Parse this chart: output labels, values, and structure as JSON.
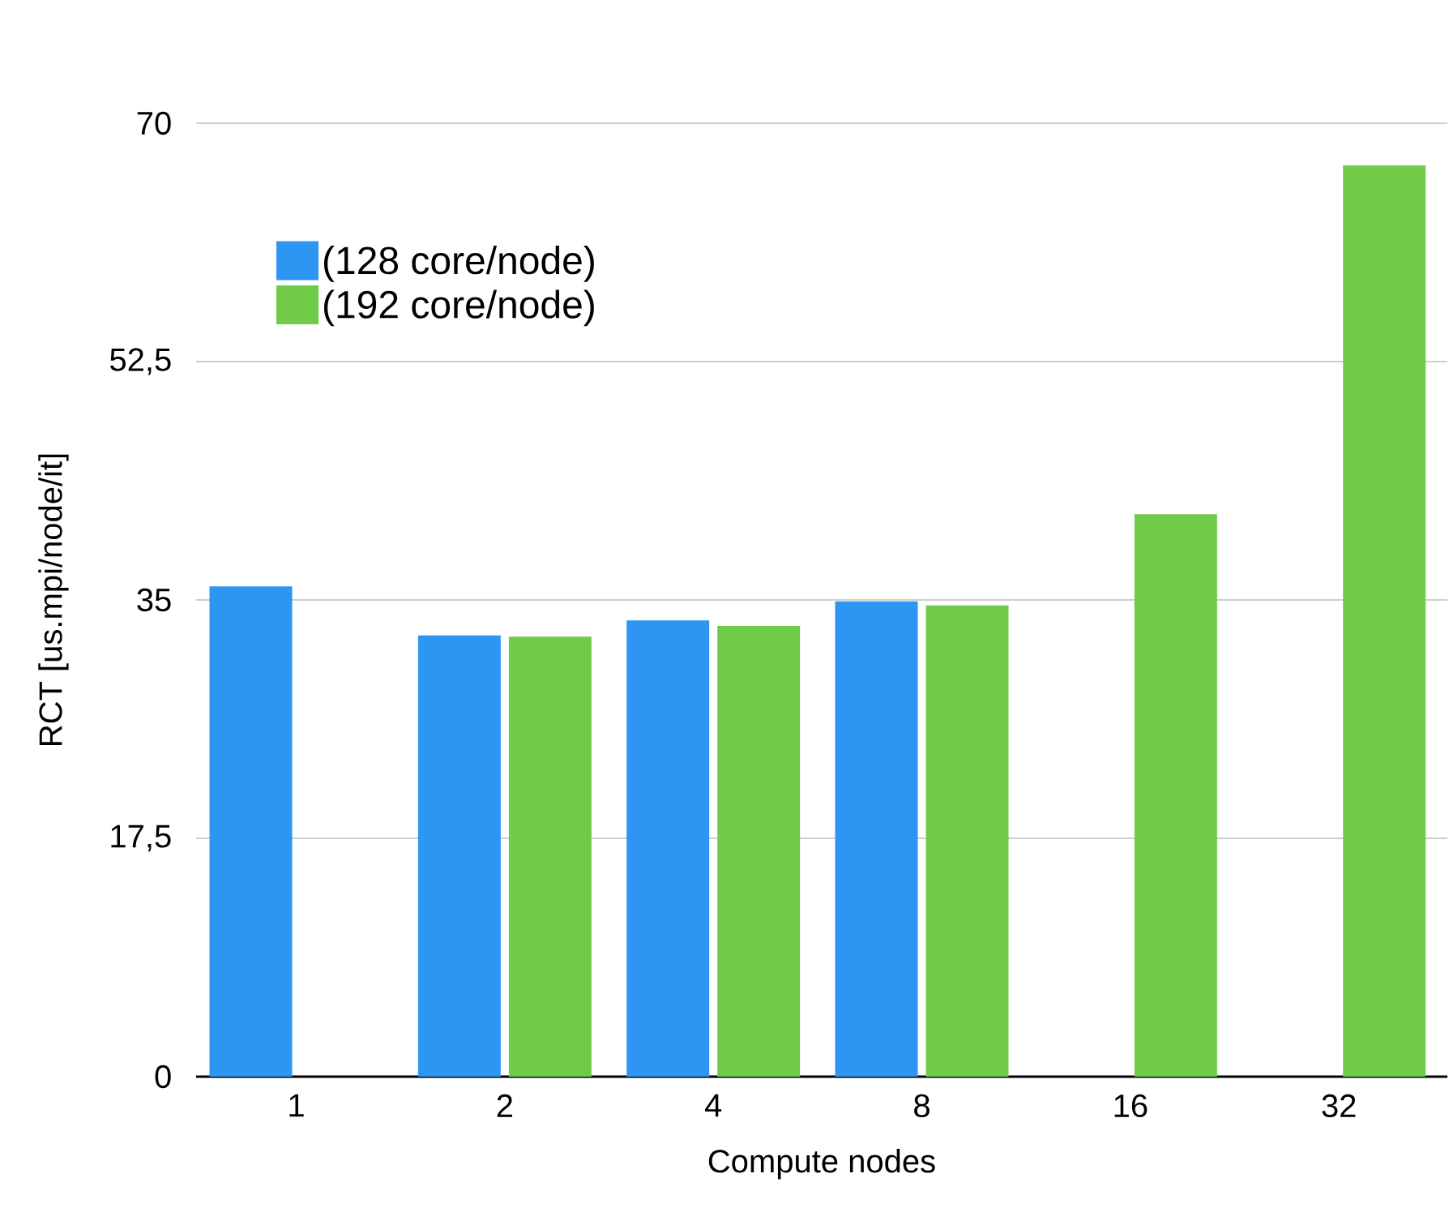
{
  "chart_data": {
    "type": "bar",
    "xlabel": "Compute nodes",
    "ylabel": "RCT [us.mpi/node/it]",
    "categories": [
      "1",
      "2",
      "4",
      "8",
      "16",
      "32"
    ],
    "series": [
      {
        "name": "(128 core/node)",
        "color": "#2d96f3",
        "values": [
          36.0,
          32.4,
          33.5,
          34.9,
          null,
          null
        ]
      },
      {
        "name": "(192 core/node)",
        "color": "#70cc48",
        "values": [
          null,
          32.3,
          33.1,
          34.6,
          41.3,
          66.9
        ]
      }
    ],
    "ylim": [
      0,
      70
    ],
    "yticks": [
      0,
      {
        "value": 17.5,
        "label": "17,5"
      },
      35,
      {
        "value": 52.5,
        "label": "52,5"
      },
      70
    ],
    "grid": "y",
    "legend": "top left"
  }
}
